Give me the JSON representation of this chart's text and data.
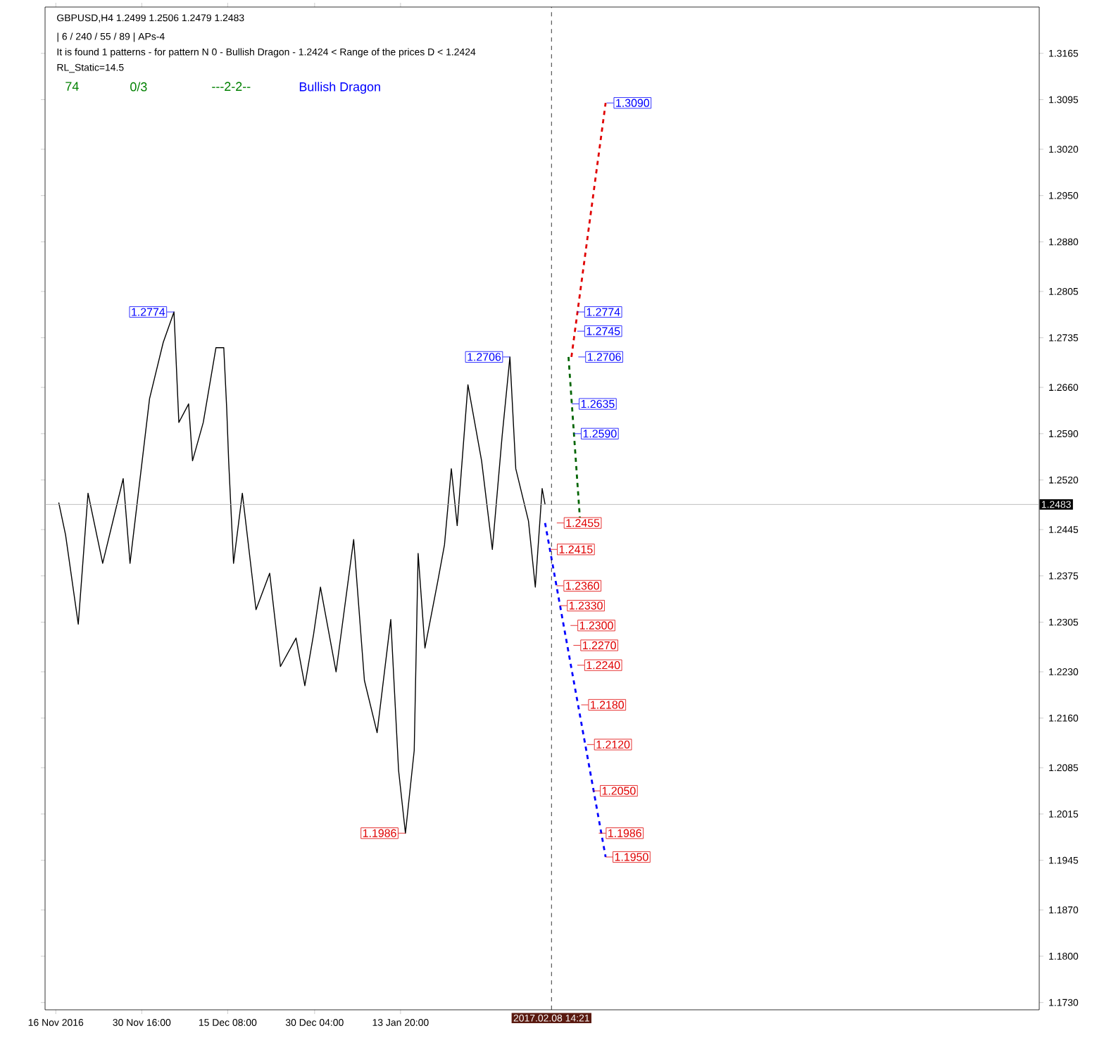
{
  "chart_data": {
    "type": "line",
    "title": "GBPUSD,H4  1.2499 1.2506 1.2479 1.2483",
    "annotations": [
      "| 6 / 240 / 55 / 89 | APs-4",
      "It is found 1 patterns  -  for pattern N 0 - Bullish Dragon - 1.2424 < Range of the prices D < 1.2424",
      "RL_Static=14.5",
      "74",
      "0/3",
      "---2-2--",
      "Bullish Dragon",
      {
        "text": "1.2774",
        "x": "2016-12-06T04:00",
        "y": 1.2774
      },
      {
        "text": "1.2706",
        "x": "2017-02-01T12:00",
        "y": 1.2706
      },
      {
        "text": "1.1986",
        "x": "2017-01-14T16:00",
        "y": 1.1986
      },
      {
        "text": "1.3090",
        "x": "2017-02-18T00:00",
        "y": 1.309
      },
      {
        "text": "1.2774",
        "x": "2017-02-13T00:00",
        "y": 1.2774
      },
      {
        "text": "1.2745",
        "x": "2017-02-13T00:00",
        "y": 1.2745
      },
      {
        "text": "1.2706",
        "x": "2017-02-13T04:00",
        "y": 1.2706
      },
      {
        "text": "1.2635",
        "x": "2017-02-12T01:30",
        "y": 1.2635
      },
      {
        "text": "1.2590",
        "x": "2017-02-12T10:00",
        "y": 1.259
      },
      {
        "text": "1.2455",
        "x": "2017-02-09T12:00",
        "y": 1.2455
      },
      {
        "text": "1.2415",
        "x": "2017-02-08T08:00",
        "y": 1.2415
      },
      {
        "text": "1.2360",
        "x": "2017-02-09T11:00",
        "y": 1.236
      },
      {
        "text": "1.2330",
        "x": "2017-02-10T01:00",
        "y": 1.233
      },
      {
        "text": "1.2300",
        "x": "2017-02-11T20:00",
        "y": 1.23
      },
      {
        "text": "1.2270",
        "x": "2017-02-12T08:00",
        "y": 1.227
      },
      {
        "text": "1.2240",
        "x": "2017-02-13T00:00",
        "y": 1.224
      },
      {
        "text": "1.2180",
        "x": "2017-02-13T16:00",
        "y": 1.218
      },
      {
        "text": "1.2120",
        "x": "2017-02-14T16:00",
        "y": 1.212
      },
      {
        "text": "1.2050",
        "x": "2017-02-15T16:00",
        "y": 1.205
      },
      {
        "text": "1.1986",
        "x": "2017-02-16T16:00",
        "y": 1.1986
      },
      {
        "text": "1.1950",
        "x": "2017-02-17T20:00",
        "y": 1.195
      }
    ],
    "series": [
      {
        "color": "#000000",
        "line_style": "solid",
        "x": [
          "2016-11-16T12:00",
          "2016-11-17T16:00",
          "2016-11-19T20:00",
          "2016-11-21T12:00",
          "2016-11-24T00:00",
          "2016-11-27T12:00",
          "2016-11-28T16:00",
          "2016-12-02T00:00",
          "2016-12-04T08:00",
          "2016-12-06T04:00",
          "2016-12-07T00:00",
          "2016-12-08T16:00",
          "2016-12-09T08:00",
          "2016-12-11T04:00",
          "2016-12-13T08:00",
          "2016-12-14T16:00",
          "2016-12-15T04:00",
          "2016-12-15T12:00",
          "2016-12-16T08:00",
          "2016-12-17T20:00",
          "2016-12-20T04:00",
          "2016-12-22T12:00",
          "2016-12-24T08:00",
          "2016-12-27T00:00",
          "2016-12-28T12:00",
          "2016-12-30T00:00",
          "2016-12-31T04:00",
          "2017-01-02T20:00",
          "2017-01-05T20:00",
          "2017-01-07T16:00",
          "2017-01-09T20:00",
          "2017-01-12T04:00",
          "2017-01-13T12:00",
          "2017-01-14T16:00",
          "2017-01-16T04:00",
          "2017-01-16T20:00",
          "2017-01-18T00:00",
          "2017-01-20T04:00",
          "2017-01-21T08:00",
          "2017-01-22T12:00",
          "2017-01-23T12:00",
          "2017-01-25T08:00",
          "2017-01-27T16:00",
          "2017-01-29T12:00",
          "2017-01-31T04:00",
          "2017-02-01T12:00",
          "2017-02-02T12:00",
          "2017-02-04T16:00",
          "2017-02-05T20:00",
          "2017-02-07T00:00",
          "2017-02-07T12:00"
        ],
        "values": [
          1.2486,
          1.2437,
          1.2302,
          1.25,
          1.2394,
          1.2522,
          1.2394,
          1.2643,
          1.2728,
          1.2774,
          1.2607,
          1.2635,
          1.2549,
          1.2607,
          1.272,
          1.272,
          1.2628,
          1.2549,
          1.2394,
          1.25,
          1.2324,
          1.2379,
          1.2238,
          1.2281,
          1.2209,
          1.2287,
          1.2358,
          1.223,
          1.243,
          1.2217,
          1.2138,
          1.2309,
          1.2081,
          1.1986,
          1.2111,
          1.2409,
          1.2266,
          1.2366,
          1.2422,
          1.2537,
          1.2451,
          1.2664,
          1.2549,
          1.2415,
          1.2586,
          1.2706,
          1.2537,
          1.2458,
          1.2358,
          1.2507,
          1.2483
        ]
      },
      {
        "color": "#0000ff",
        "line_style": "dashed",
        "x": [
          "2017-02-07T12:00",
          "2017-02-17T20:00"
        ],
        "values": [
          1.2455,
          1.195
        ]
      },
      {
        "color": "#e00000",
        "line_style": "dashed",
        "x": [
          "2017-02-12T00:00",
          "2017-02-17T20:00"
        ],
        "values": [
          1.2706,
          1.309
        ]
      },
      {
        "color": "#006400",
        "line_style": "dashed",
        "x": [
          "2017-02-11T12:00",
          "2017-02-13T12:00"
        ],
        "values": [
          1.2706,
          1.2455
        ]
      }
    ],
    "marker": "none",
    "xlim": [
      "2016-11-14T04:00",
      "2017-05-02T20:00"
    ],
    "ylim": [
      1.1719,
      1.3235
    ],
    "xticks": [
      {
        "value": "2016-11-16T00:00",
        "label": "16 Nov 2016"
      },
      {
        "value": "2016-11-30T16:00",
        "label": "30 Nov 16:00"
      },
      {
        "value": "2016-12-15T08:00",
        "label": "15 Dec 08:00"
      },
      {
        "value": "2016-12-30T04:00",
        "label": "30 Dec 04:00"
      },
      {
        "value": "2017-01-13T20:00",
        "label": "13 Jan 20:00"
      }
    ],
    "yticks": [
      {
        "value": 1.3165,
        "label": "1.3165"
      },
      {
        "value": 1.3095,
        "label": "1.3095"
      },
      {
        "value": 1.302,
        "label": "1.3020"
      },
      {
        "value": 1.295,
        "label": "1.2950"
      },
      {
        "value": 1.288,
        "label": "1.2880"
      },
      {
        "value": 1.2805,
        "label": "1.2805"
      },
      {
        "value": 1.2735,
        "label": "1.2735"
      },
      {
        "value": 1.266,
        "label": "1.2660"
      },
      {
        "value": 1.259,
        "label": "1.2590"
      },
      {
        "value": 1.252,
        "label": "1.2520"
      },
      {
        "value": 1.2445,
        "label": "1.2445"
      },
      {
        "value": 1.2375,
        "label": "1.2375"
      },
      {
        "value": 1.2305,
        "label": "1.2305"
      },
      {
        "value": 1.223,
        "label": "1.2230"
      },
      {
        "value": 1.216,
        "label": "1.2160"
      },
      {
        "value": 1.2085,
        "label": "1.2085"
      },
      {
        "value": 1.2015,
        "label": "1.2015"
      },
      {
        "value": 1.1945,
        "label": "1.1945"
      },
      {
        "value": 1.187,
        "label": "1.1870"
      },
      {
        "value": 1.18,
        "label": "1.1800"
      },
      {
        "value": 1.173,
        "label": "1.1730"
      }
    ],
    "ref_lines": [
      {
        "axis": "y",
        "value": 1.2483,
        "label": "1.2483",
        "color": "#b0b0b0",
        "line_style": "solid"
      },
      {
        "axis": "x",
        "value": "2017-02-08T14:21",
        "label": "2017.02.08 14:21",
        "color": "#000000",
        "line_style": "dashed"
      }
    ]
  }
}
